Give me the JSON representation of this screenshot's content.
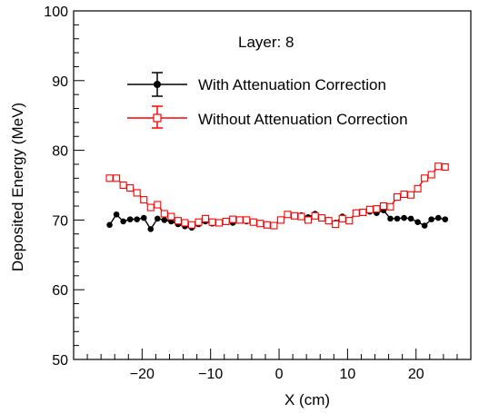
{
  "chart_data": {
    "type": "line",
    "annotation": "Layer: 8",
    "xlabel": "X (cm)",
    "ylabel": "Deposited Energy (MeV)",
    "xlim": [
      -30,
      28
    ],
    "ylim": [
      50,
      100
    ],
    "x_ticks": [
      -20,
      -10,
      0,
      10,
      20
    ],
    "x_tick_labels": [
      "−20",
      "−10",
      "0",
      "10",
      "20"
    ],
    "y_ticks": [
      50,
      60,
      70,
      80,
      90,
      100
    ],
    "y_tick_labels": [
      "50",
      "60",
      "70",
      "80",
      "90",
      "100"
    ],
    "grid": false,
    "legend_position": "top-center",
    "series": [
      {
        "name": "With Attenuation Correction",
        "color": "#000000",
        "marker": "filled-circle",
        "x": [
          -24.75,
          -23.75,
          -22.75,
          -21.75,
          -20.75,
          -19.75,
          -18.75,
          -17.75,
          -16.75,
          -15.75,
          -14.75,
          -13.75,
          -12.75,
          -11.75,
          -10.75,
          -9.75,
          -8.75,
          -7.75,
          -6.75,
          -5.75,
          -4.75,
          -3.75,
          -2.75,
          -1.75,
          -0.75,
          0.25,
          1.25,
          2.25,
          3.25,
          4.25,
          5.25,
          6.25,
          7.25,
          8.25,
          9.25,
          10.25,
          11.25,
          12.25,
          13.25,
          14.25,
          15.25,
          16.25,
          17.25,
          18.25,
          19.25,
          20.25,
          21.25,
          22.25,
          23.25,
          24.25
        ],
        "values": [
          69.3,
          70.8,
          69.8,
          70.1,
          70.1,
          70.3,
          68.7,
          70.2,
          70.0,
          69.8,
          69.4,
          69.1,
          68.9,
          69.4,
          69.8,
          69.5,
          69.5,
          69.8,
          69.6,
          69.9,
          69.8,
          69.8,
          69.6,
          69.4,
          69.3,
          70.0,
          70.8,
          70.6,
          70.7,
          70.4,
          70.9,
          70.4,
          70.0,
          69.6,
          70.5,
          69.9,
          71.1,
          71.0,
          71.2,
          71.0,
          71.4,
          70.2,
          70.2,
          70.3,
          70.2,
          69.7,
          69.2,
          70.1,
          70.3,
          70.1
        ]
      },
      {
        "name": "Without Attenuation Correction",
        "color": "#ff0000",
        "marker": "open-square",
        "x": [
          -24.75,
          -23.75,
          -22.75,
          -21.75,
          -20.75,
          -19.75,
          -18.75,
          -17.75,
          -16.75,
          -15.75,
          -14.75,
          -13.75,
          -12.75,
          -11.75,
          -10.75,
          -9.75,
          -8.75,
          -7.75,
          -6.75,
          -5.75,
          -4.75,
          -3.75,
          -2.75,
          -1.75,
          -0.75,
          0.25,
          1.25,
          2.25,
          3.25,
          4.25,
          5.25,
          6.25,
          7.25,
          8.25,
          9.25,
          10.25,
          11.25,
          12.25,
          13.25,
          14.25,
          15.25,
          16.25,
          17.25,
          18.25,
          19.25,
          20.25,
          21.25,
          22.25,
          23.25,
          24.25
        ],
        "values": [
          76.0,
          76.0,
          75.0,
          74.6,
          73.9,
          72.9,
          71.8,
          72.2,
          70.9,
          70.5,
          69.9,
          69.6,
          69.3,
          69.7,
          70.2,
          69.7,
          69.6,
          69.8,
          70.1,
          70.0,
          70.0,
          69.7,
          69.5,
          69.3,
          69.2,
          70.0,
          70.8,
          70.6,
          70.5,
          70.0,
          70.6,
          70.3,
          69.9,
          69.4,
          70.2,
          69.9,
          71.0,
          71.1,
          71.5,
          71.6,
          72.0,
          71.9,
          73.3,
          73.7,
          73.6,
          74.5,
          76.0,
          76.5,
          77.7,
          77.6
        ]
      }
    ]
  }
}
